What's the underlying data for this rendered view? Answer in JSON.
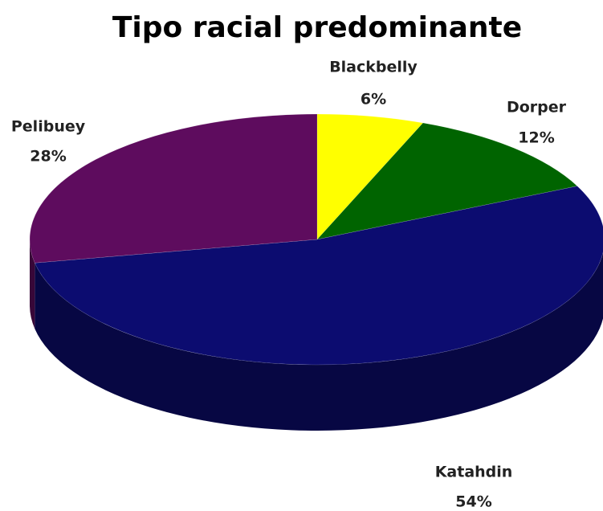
{
  "chart_data": {
    "type": "pie",
    "title": "Tipo racial predominante",
    "categories": [
      "Blackbelly",
      "Dorper",
      "Katahdin",
      "Pelibuey"
    ],
    "values": [
      6,
      12,
      54,
      28
    ],
    "value_labels": [
      "6%",
      "12%",
      "54%",
      "28%"
    ],
    "colors": [
      "#ffff00",
      "#006400",
      "#0c0c70",
      "#5e0c5e"
    ]
  }
}
